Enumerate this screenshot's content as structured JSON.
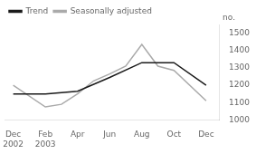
{
  "chart_data": {
    "type": "line",
    "y_label": "no.",
    "series": [
      {
        "name": "Trend",
        "color": "#1a1a1a",
        "x": [
          0,
          2,
          4,
          6,
          8,
          10,
          12
        ],
        "values": [
          1150,
          1150,
          1165,
          1245,
          1330,
          1330,
          1200
        ]
      },
      {
        "name": "Seasonally adjusted",
        "color": "#aaaaaa",
        "x": [
          0,
          2,
          3,
          4,
          5,
          6,
          7,
          8,
          9,
          10,
          12
        ],
        "values": [
          1200,
          1075,
          1090,
          1150,
          1225,
          1265,
          1310,
          1435,
          1310,
          1285,
          1110
        ]
      }
    ],
    "xlim": [
      -0.5,
      12.8
    ],
    "xticks": [
      {
        "value": 0,
        "label": "Dec\n2002"
      },
      {
        "value": 2,
        "label": "Feb\n2003"
      },
      {
        "value": 4,
        "label": "Apr"
      },
      {
        "value": 6,
        "label": "Jun"
      },
      {
        "value": 8,
        "label": "Aug"
      },
      {
        "value": 10,
        "label": "Oct"
      },
      {
        "value": 12,
        "label": "Dec"
      }
    ],
    "ylim": [
      1000,
      1550
    ],
    "yticks": [
      1000,
      1100,
      1200,
      1300,
      1400,
      1500
    ],
    "grid": false,
    "legend": "upper left"
  }
}
